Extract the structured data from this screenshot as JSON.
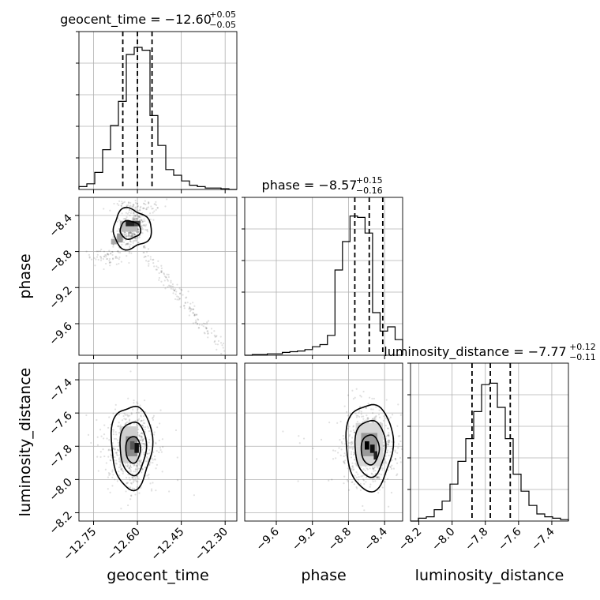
{
  "chart_data": {
    "type": "corner",
    "parameters": [
      "geocent_time",
      "phase",
      "luminosity_distance"
    ],
    "ranges": {
      "geocent_time": [
        -12.8,
        -12.26
      ],
      "phase": [
        -9.95,
        -8.2
      ],
      "luminosity_distance": [
        -8.25,
        -7.3
      ]
    },
    "ticks": {
      "geocent_time": [
        "−12.75",
        "−12.60",
        "−12.45",
        "−12.30"
      ],
      "geocent_time_values": [
        -12.75,
        -12.6,
        -12.45,
        -12.3
      ],
      "phase": [
        "−9.6",
        "−9.2",
        "−8.8",
        "−8.4"
      ],
      "phase_values": [
        -9.6,
        -9.2,
        -8.8,
        -8.4
      ],
      "luminosity_distance": [
        "−8.2",
        "−8.0",
        "−7.8",
        "−7.6",
        "−7.4"
      ],
      "luminosity_distance_values": [
        -8.2,
        -8.0,
        -7.8,
        -7.6,
        -7.4
      ]
    },
    "titles": [
      {
        "param": "geocent_time",
        "text": "geocent_time = −12.60",
        "plus": "+0.05",
        "minus": "−0.05",
        "median": -12.6,
        "lo": -12.65,
        "hi": -12.55
      },
      {
        "param": "phase",
        "text": "phase = −8.57",
        "plus": "+0.15",
        "minus": "−0.16",
        "median": -8.57,
        "lo": -8.73,
        "hi": -8.42
      },
      {
        "param": "luminosity_distance",
        "text": "luminosity_distance = −7.77",
        "plus": "+0.12",
        "minus": "−0.11",
        "median": -7.77,
        "lo": -7.88,
        "hi": -7.65
      }
    ],
    "histograms": {
      "geocent_time": [
        0.02,
        0.04,
        0.12,
        0.28,
        0.45,
        0.62,
        0.95,
        1.0,
        0.98,
        0.52,
        0.31,
        0.14,
        0.1,
        0.06,
        0.03,
        0.02,
        0.01,
        0.01,
        0.005,
        0.0
      ],
      "phase": [
        0.0,
        0.005,
        0.005,
        0.01,
        0.01,
        0.02,
        0.025,
        0.03,
        0.04,
        0.06,
        0.075,
        0.14,
        0.6,
        0.8,
        0.98,
        0.97,
        0.86,
        0.3,
        0.17,
        0.2,
        0.11
      ],
      "luminosity_distance": [
        0.0,
        0.02,
        0.03,
        0.08,
        0.14,
        0.26,
        0.42,
        0.58,
        0.77,
        0.96,
        0.97,
        0.8,
        0.58,
        0.33,
        0.21,
        0.11,
        0.05,
        0.03,
        0.02,
        0.01
      ]
    },
    "densities": {
      "phase_vs_geocent_time": {
        "center": [
          -12.61,
          -8.52
        ],
        "core_spread": [
          0.025,
          0.09
        ]
      },
      "luminosity_distance_vs_geocent_time": {
        "center": [
          -12.62,
          -7.8
        ],
        "core_spread": [
          0.03,
          0.09
        ]
      },
      "luminosity_distance_vs_phase": {
        "center": [
          -8.55,
          -7.8
        ],
        "core_spread": [
          0.08,
          0.09
        ]
      }
    },
    "xlabels": [
      "geocent_time",
      "phase",
      "luminosity_distance"
    ],
    "ylabels": [
      "",
      "phase",
      "luminosity_distance"
    ],
    "grid": true
  }
}
